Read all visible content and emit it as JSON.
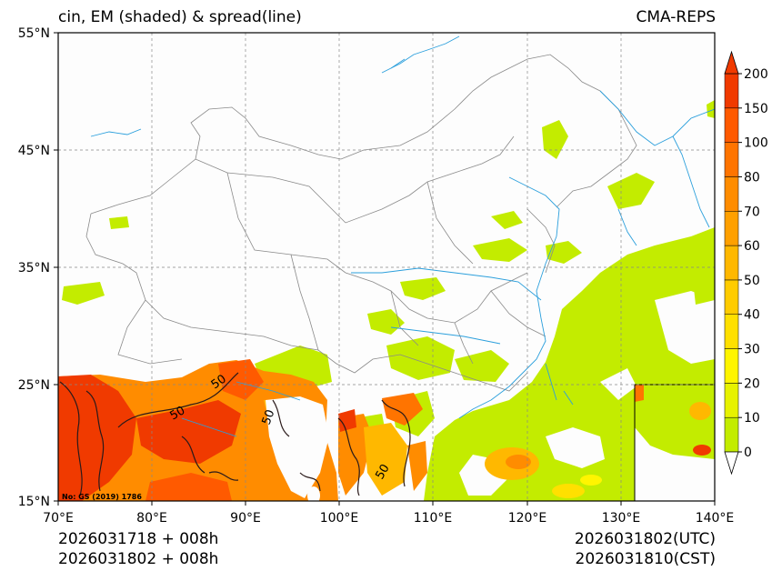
{
  "header": {
    "title_left": "cin, EM (shaded) & spread(line)",
    "title_right": "CMA-REPS"
  },
  "axes": {
    "lat_labels": [
      "55°N",
      "45°N",
      "35°N",
      "25°N",
      "15°N"
    ],
    "lon_labels": [
      "70°E",
      "80°E",
      "90°E",
      "100°E",
      "110°E",
      "120°E",
      "130°E",
      "140°E"
    ]
  },
  "colorbar": {
    "levels": [
      "0",
      "10",
      "20",
      "30",
      "40",
      "50",
      "60",
      "70",
      "80",
      "100",
      "150",
      "200"
    ],
    "colors": [
      "#c3ec00",
      "#e7f200",
      "#fff500",
      "#ffe000",
      "#ffcc00",
      "#ffb800",
      "#ffa000",
      "#ff8c00",
      "#ff7400",
      "#ff5a00",
      "#f03a00"
    ]
  },
  "contour_labels": [
    "50",
    "50",
    "50",
    "50"
  ],
  "map_note": "No: GS (2019) 1786",
  "footer": {
    "init_utc": "2026031718  +  008h",
    "init_cst": "2026031802  +  008h",
    "valid_utc": "2026031802(UTC)",
    "valid_cst": "2026031810(CST)"
  },
  "colors": {
    "low_cin": "#c3ec00",
    "high_cin": "#f03a00",
    "rivers": "#2b9fdc",
    "borders": "#8a8a8a"
  }
}
